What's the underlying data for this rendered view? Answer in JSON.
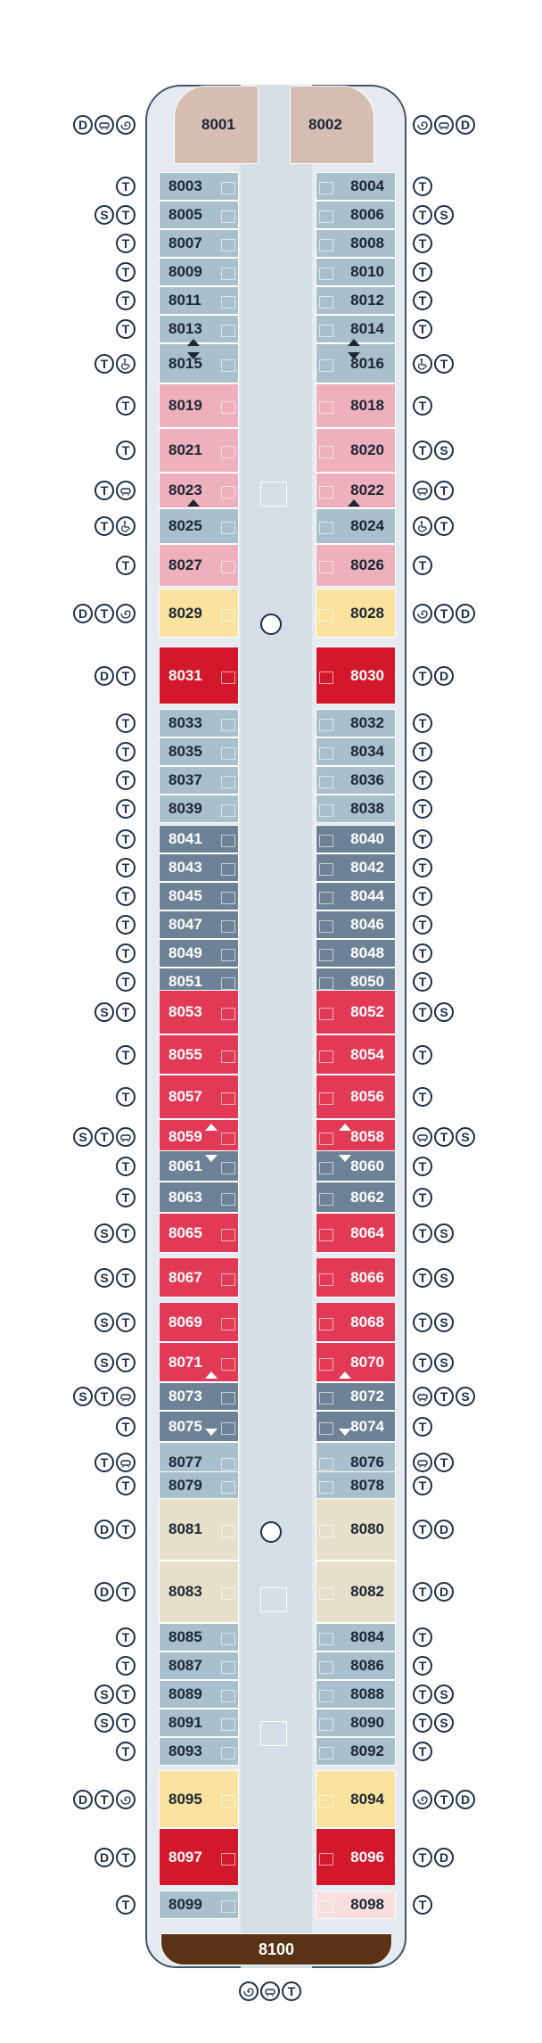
{
  "colors": {
    "suite_beige": "#d5bdb3",
    "light_blue": "#a8bfcc",
    "pink": "#eeb0bc",
    "yellow": "#f9e39e",
    "red": "#d3182c",
    "dark_slate": "#6d8296",
    "crimson": "#e23a56",
    "tan": "#e6e0cb",
    "light_pink": "#f7dedf",
    "brown": "#5a3216"
  },
  "legend_icons": {
    "D": "double-bed-icon",
    "T": "twin-beds-icon",
    "S": "sofa-bed-icon",
    "B": "bathtub-icon",
    "W": "whirlpool-icon",
    "A": "accessible-icon"
  },
  "cabins": [
    {
      "num": "8001",
      "side": "L",
      "color": "suite_beige",
      "icons": [
        "D",
        "B",
        "W"
      ]
    },
    {
      "num": "8002",
      "side": "R",
      "color": "suite_beige",
      "icons": [
        "W",
        "B",
        "D"
      ]
    },
    {
      "num": "8003",
      "side": "L",
      "color": "light_blue",
      "icons": [
        "T"
      ]
    },
    {
      "num": "8004",
      "side": "R",
      "color": "light_blue",
      "icons": [
        "T"
      ]
    },
    {
      "num": "8005",
      "side": "L",
      "color": "light_blue",
      "icons": [
        "S",
        "T"
      ]
    },
    {
      "num": "8006",
      "side": "R",
      "color": "light_blue",
      "icons": [
        "T",
        "S"
      ]
    },
    {
      "num": "8007",
      "side": "L",
      "color": "light_blue",
      "icons": [
        "T"
      ]
    },
    {
      "num": "8008",
      "side": "R",
      "color": "light_blue",
      "icons": [
        "T"
      ]
    },
    {
      "num": "8009",
      "side": "L",
      "color": "light_blue",
      "icons": [
        "T"
      ]
    },
    {
      "num": "8010",
      "side": "R",
      "color": "light_blue",
      "icons": [
        "T"
      ]
    },
    {
      "num": "8011",
      "side": "L",
      "color": "light_blue",
      "icons": [
        "T"
      ]
    },
    {
      "num": "8012",
      "side": "R",
      "color": "light_blue",
      "icons": [
        "T"
      ]
    },
    {
      "num": "8013",
      "side": "L",
      "color": "light_blue",
      "icons": [
        "T"
      ]
    },
    {
      "num": "8014",
      "side": "R",
      "color": "light_blue",
      "icons": [
        "T"
      ]
    },
    {
      "num": "8015",
      "side": "L",
      "color": "light_blue",
      "icons": [
        "T",
        "A"
      ]
    },
    {
      "num": "8016",
      "side": "R",
      "color": "light_blue",
      "icons": [
        "A",
        "T"
      ]
    },
    {
      "num": "8019",
      "side": "L",
      "color": "pink",
      "icons": [
        "T"
      ]
    },
    {
      "num": "8018",
      "side": "R",
      "color": "pink",
      "icons": [
        "T"
      ]
    },
    {
      "num": "8021",
      "side": "L",
      "color": "pink",
      "icons": [
        "T"
      ]
    },
    {
      "num": "8020",
      "side": "R",
      "color": "pink",
      "icons": [
        "T",
        "S"
      ]
    },
    {
      "num": "8023",
      "side": "L",
      "color": "pink",
      "icons": [
        "T",
        "B"
      ]
    },
    {
      "num": "8022",
      "side": "R",
      "color": "pink",
      "icons": [
        "B",
        "T"
      ]
    },
    {
      "num": "8025",
      "side": "L",
      "color": "light_blue",
      "icons": [
        "T",
        "A"
      ]
    },
    {
      "num": "8024",
      "side": "R",
      "color": "light_blue",
      "icons": [
        "A",
        "T"
      ]
    },
    {
      "num": "8027",
      "side": "L",
      "color": "pink",
      "icons": [
        "T"
      ]
    },
    {
      "num": "8026",
      "side": "R",
      "color": "pink",
      "icons": [
        "T"
      ]
    },
    {
      "num": "8029",
      "side": "L",
      "color": "yellow",
      "icons": [
        "D",
        "T",
        "W"
      ]
    },
    {
      "num": "8028",
      "side": "R",
      "color": "yellow",
      "icons": [
        "W",
        "T",
        "D"
      ]
    },
    {
      "num": "8031",
      "side": "L",
      "color": "red",
      "icons": [
        "D",
        "T"
      ]
    },
    {
      "num": "8030",
      "side": "R",
      "color": "red",
      "icons": [
        "T",
        "D"
      ]
    },
    {
      "num": "8033",
      "side": "L",
      "color": "light_blue",
      "icons": [
        "T"
      ]
    },
    {
      "num": "8032",
      "side": "R",
      "color": "light_blue",
      "icons": [
        "T"
      ]
    },
    {
      "num": "8035",
      "side": "L",
      "color": "light_blue",
      "icons": [
        "T"
      ]
    },
    {
      "num": "8034",
      "side": "R",
      "color": "light_blue",
      "icons": [
        "T"
      ]
    },
    {
      "num": "8037",
      "side": "L",
      "color": "light_blue",
      "icons": [
        "T"
      ]
    },
    {
      "num": "8036",
      "side": "R",
      "color": "light_blue",
      "icons": [
        "T"
      ]
    },
    {
      "num": "8039",
      "side": "L",
      "color": "light_blue",
      "icons": [
        "T"
      ]
    },
    {
      "num": "8038",
      "side": "R",
      "color": "light_blue",
      "icons": [
        "T"
      ]
    },
    {
      "num": "8041",
      "side": "L",
      "color": "dark_slate",
      "icons": [
        "T"
      ]
    },
    {
      "num": "8040",
      "side": "R",
      "color": "dark_slate",
      "icons": [
        "T"
      ]
    },
    {
      "num": "8043",
      "side": "L",
      "color": "dark_slate",
      "icons": [
        "T"
      ]
    },
    {
      "num": "8042",
      "side": "R",
      "color": "dark_slate",
      "icons": [
        "T"
      ]
    },
    {
      "num": "8045",
      "side": "L",
      "color": "dark_slate",
      "icons": [
        "T"
      ]
    },
    {
      "num": "8044",
      "side": "R",
      "color": "dark_slate",
      "icons": [
        "T"
      ]
    },
    {
      "num": "8047",
      "side": "L",
      "color": "dark_slate",
      "icons": [
        "T"
      ]
    },
    {
      "num": "8046",
      "side": "R",
      "color": "dark_slate",
      "icons": [
        "T"
      ]
    },
    {
      "num": "8049",
      "side": "L",
      "color": "dark_slate",
      "icons": [
        "T"
      ]
    },
    {
      "num": "8048",
      "side": "R",
      "color": "dark_slate",
      "icons": [
        "T"
      ]
    },
    {
      "num": "8051",
      "side": "L",
      "color": "dark_slate",
      "icons": [
        "T"
      ]
    },
    {
      "num": "8050",
      "side": "R",
      "color": "dark_slate",
      "icons": [
        "T"
      ]
    },
    {
      "num": "8053",
      "side": "L",
      "color": "crimson",
      "icons": [
        "S",
        "T"
      ]
    },
    {
      "num": "8052",
      "side": "R",
      "color": "crimson",
      "icons": [
        "T",
        "S"
      ]
    },
    {
      "num": "8055",
      "side": "L",
      "color": "crimson",
      "icons": [
        "T"
      ]
    },
    {
      "num": "8054",
      "side": "R",
      "color": "crimson",
      "icons": [
        "T"
      ]
    },
    {
      "num": "8057",
      "side": "L",
      "color": "crimson",
      "icons": [
        "T"
      ]
    },
    {
      "num": "8056",
      "side": "R",
      "color": "crimson",
      "icons": [
        "T"
      ]
    },
    {
      "num": "8059",
      "side": "L",
      "color": "crimson",
      "icons": [
        "S",
        "T",
        "B"
      ]
    },
    {
      "num": "8058",
      "side": "R",
      "color": "crimson",
      "icons": [
        "B",
        "T",
        "S"
      ]
    },
    {
      "num": "8061",
      "side": "L",
      "color": "dark_slate",
      "icons": [
        "T"
      ]
    },
    {
      "num": "8060",
      "side": "R",
      "color": "dark_slate",
      "icons": [
        "T"
      ]
    },
    {
      "num": "8063",
      "side": "L",
      "color": "dark_slate",
      "icons": [
        "T"
      ]
    },
    {
      "num": "8062",
      "side": "R",
      "color": "dark_slate",
      "icons": [
        "T"
      ]
    },
    {
      "num": "8065",
      "side": "L",
      "color": "crimson",
      "icons": [
        "S",
        "T"
      ]
    },
    {
      "num": "8064",
      "side": "R",
      "color": "crimson",
      "icons": [
        "T",
        "S"
      ]
    },
    {
      "num": "8067",
      "side": "L",
      "color": "crimson",
      "icons": [
        "S",
        "T"
      ]
    },
    {
      "num": "8066",
      "side": "R",
      "color": "crimson",
      "icons": [
        "T",
        "S"
      ]
    },
    {
      "num": "8069",
      "side": "L",
      "color": "crimson",
      "icons": [
        "S",
        "T"
      ]
    },
    {
      "num": "8068",
      "side": "R",
      "color": "crimson",
      "icons": [
        "T",
        "S"
      ]
    },
    {
      "num": "8071",
      "side": "L",
      "color": "crimson",
      "icons": [
        "S",
        "T"
      ]
    },
    {
      "num": "8070",
      "side": "R",
      "color": "crimson",
      "icons": [
        "T",
        "S"
      ]
    },
    {
      "num": "8073",
      "side": "L",
      "color": "dark_slate",
      "icons": [
        "S",
        "T",
        "B"
      ]
    },
    {
      "num": "8072",
      "side": "R",
      "color": "dark_slate",
      "icons": [
        "B",
        "T",
        "S"
      ]
    },
    {
      "num": "8075",
      "side": "L",
      "color": "dark_slate",
      "icons": [
        "T"
      ]
    },
    {
      "num": "8074",
      "side": "R",
      "color": "dark_slate",
      "icons": [
        "T"
      ]
    },
    {
      "num": "8077",
      "side": "L",
      "color": "light_blue",
      "icons": [
        "T",
        "B"
      ]
    },
    {
      "num": "8076",
      "side": "R",
      "color": "light_blue",
      "icons": [
        "B",
        "T"
      ]
    },
    {
      "num": "8079",
      "side": "L",
      "color": "light_blue",
      "icons": [
        "T"
      ]
    },
    {
      "num": "8078",
      "side": "R",
      "color": "light_blue",
      "icons": [
        "T"
      ]
    },
    {
      "num": "8081",
      "side": "L",
      "color": "tan",
      "icons": [
        "D",
        "T"
      ]
    },
    {
      "num": "8080",
      "side": "R",
      "color": "tan",
      "icons": [
        "T",
        "D"
      ]
    },
    {
      "num": "8083",
      "side": "L",
      "color": "tan",
      "icons": [
        "D",
        "T"
      ]
    },
    {
      "num": "8082",
      "side": "R",
      "color": "tan",
      "icons": [
        "T",
        "D"
      ]
    },
    {
      "num": "8085",
      "side": "L",
      "color": "light_blue",
      "icons": [
        "T"
      ]
    },
    {
      "num": "8084",
      "side": "R",
      "color": "light_blue",
      "icons": [
        "T"
      ]
    },
    {
      "num": "8087",
      "side": "L",
      "color": "light_blue",
      "icons": [
        "T"
      ]
    },
    {
      "num": "8086",
      "side": "R",
      "color": "light_blue",
      "icons": [
        "T"
      ]
    },
    {
      "num": "8089",
      "side": "L",
      "color": "light_blue",
      "icons": [
        "S",
        "T"
      ]
    },
    {
      "num": "8088",
      "side": "R",
      "color": "light_blue",
      "icons": [
        "T",
        "S"
      ]
    },
    {
      "num": "8091",
      "side": "L",
      "color": "light_blue",
      "icons": [
        "S",
        "T"
      ]
    },
    {
      "num": "8090",
      "side": "R",
      "color": "light_blue",
      "icons": [
        "T",
        "S"
      ]
    },
    {
      "num": "8093",
      "side": "L",
      "color": "light_blue",
      "icons": [
        "T"
      ]
    },
    {
      "num": "8092",
      "side": "R",
      "color": "light_blue",
      "icons": [
        "T"
      ]
    },
    {
      "num": "8095",
      "side": "L",
      "color": "yellow",
      "icons": [
        "D",
        "T",
        "W"
      ]
    },
    {
      "num": "8094",
      "side": "R",
      "color": "yellow",
      "icons": [
        "W",
        "T",
        "D"
      ]
    },
    {
      "num": "8097",
      "side": "L",
      "color": "red",
      "icons": [
        "D",
        "T"
      ]
    },
    {
      "num": "8096",
      "side": "R",
      "color": "red",
      "icons": [
        "T",
        "D"
      ]
    },
    {
      "num": "8099",
      "side": "L",
      "color": "light_blue",
      "icons": [
        "T"
      ]
    },
    {
      "num": "8098",
      "side": "R",
      "color": "light_pink",
      "icons": [
        "T"
      ]
    },
    {
      "num": "8100",
      "side": "C",
      "color": "brown",
      "icons": [
        "W",
        "B",
        "T"
      ]
    }
  ]
}
